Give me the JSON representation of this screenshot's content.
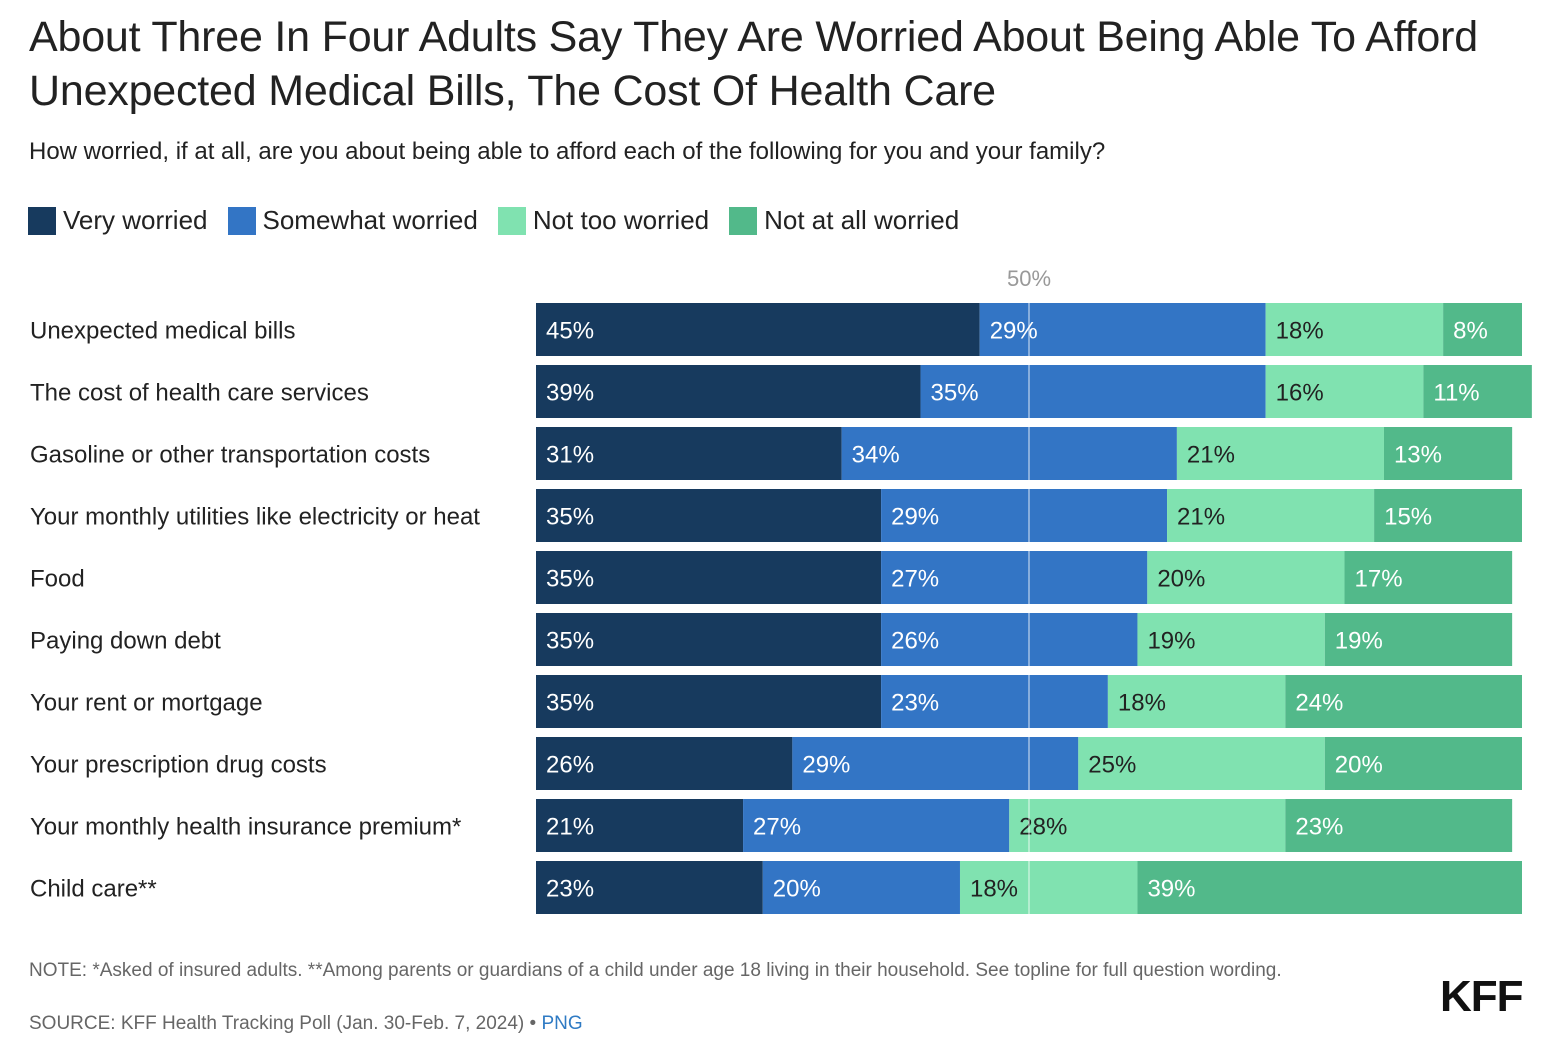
{
  "title": "About Three In Four Adults Say They Are Worried About Being Able To Afford Unexpected Medical Bills, The Cost Of Health Care",
  "subtitle": "How worried, if at all, are you about being able to afford each of the following for you and your family?",
  "legend": [
    {
      "label": "Very worried",
      "color": "#173a5e"
    },
    {
      "label": "Somewhat worried",
      "color": "#3375c5"
    },
    {
      "label": "Not too worried",
      "color": "#80e2b0"
    },
    {
      "label": "Not at all worried",
      "color": "#52b98a"
    }
  ],
  "note": "NOTE: *Asked of insured adults. **Among parents or guardians of a child under age 18 living in their household. See topline for full question wording.",
  "source_text": "SOURCE: KFF Health Tracking Poll (Jan. 30-Feb. 7, 2024) • ",
  "png_link": "PNG",
  "logo": "KFF",
  "chart_data": {
    "type": "bar",
    "orientation": "horizontal-stacked",
    "title": "About Three In Four Adults Say They Are Worried About Being Able To Afford Unexpected Medical Bills, The Cost Of Health Care",
    "reference_line": {
      "value": 50,
      "label": "50%"
    },
    "xlim": [
      0,
      100
    ],
    "categories": [
      "Unexpected medical bills",
      "The cost of health care services",
      "Gasoline or other transportation costs",
      "Your monthly utilities like electricity or heat",
      "Food",
      "Paying down debt",
      "Your rent or mortgage",
      "Your prescription drug costs",
      "Your monthly health insurance premium*",
      "Child care**"
    ],
    "series": [
      {
        "name": "Very worried",
        "color": "#173a5e",
        "label_color": "#ffffff",
        "values": [
          45,
          39,
          31,
          35,
          35,
          35,
          35,
          26,
          21,
          23
        ]
      },
      {
        "name": "Somewhat worried",
        "color": "#3375c5",
        "label_color": "#ffffff",
        "values": [
          29,
          35,
          34,
          29,
          27,
          26,
          23,
          29,
          27,
          20
        ]
      },
      {
        "name": "Not too worried",
        "color": "#80e2b0",
        "label_color": "#222222",
        "values": [
          18,
          16,
          21,
          21,
          20,
          19,
          18,
          25,
          28,
          18
        ]
      },
      {
        "name": "Not at all worried",
        "color": "#52b98a",
        "label_color": "#ffffff",
        "values": [
          8,
          11,
          13,
          15,
          17,
          19,
          24,
          20,
          23,
          39
        ]
      }
    ]
  }
}
